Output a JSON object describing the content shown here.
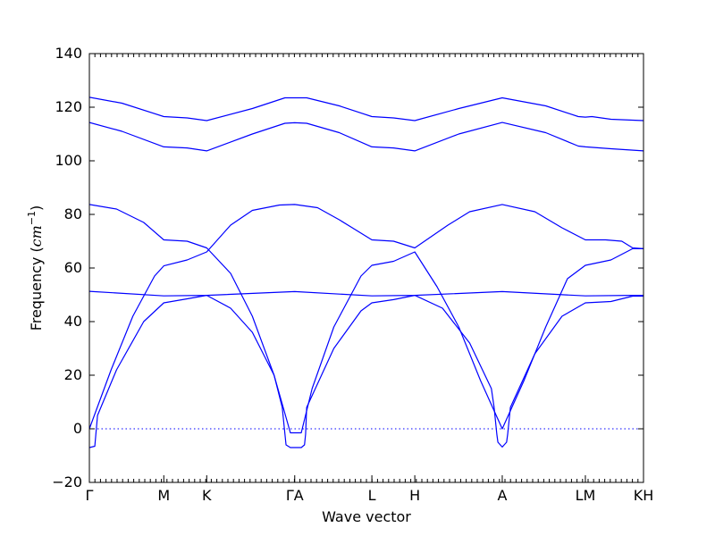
{
  "chart_data": {
    "type": "line",
    "title": "",
    "xlabel": "Wave vector",
    "ylabel_prefix": "Frequency (",
    "ylabel_unit": "cm",
    "ylabel_exp": "−1",
    "ylabel_suffix": ")",
    "ylim": [
      -20,
      140
    ],
    "yticks": [
      -20,
      0,
      20,
      40,
      60,
      80,
      100,
      120,
      140
    ],
    "xlim": [
      0,
      10.2
    ],
    "high_symmetry_points": [
      {
        "label": "Γ",
        "x": 0.0
      },
      {
        "label": "M",
        "x": 1.37
      },
      {
        "label": "K",
        "x": 2.16
      },
      {
        "label": "ΓA",
        "x": 3.78
      },
      {
        "label": "L",
        "x": 5.2
      },
      {
        "label": "H",
        "x": 5.99
      },
      {
        "label": "A",
        "x": 7.6
      },
      {
        "label": "LM",
        "x": 9.13
      },
      {
        "label": "KH",
        "x": 10.2
      }
    ],
    "reference_line_y": 0,
    "grid": false,
    "series": [
      {
        "values": [
          [
            0,
            123.7
          ],
          [
            0.6,
            121.5
          ],
          [
            1.37,
            116.5
          ],
          [
            1.8,
            116
          ],
          [
            2.16,
            115
          ],
          [
            3.0,
            119.5
          ],
          [
            3.6,
            123.5
          ],
          [
            3.78,
            123.5
          ],
          [
            4.0,
            123.5
          ],
          [
            4.6,
            120.5
          ],
          [
            5.2,
            116.5
          ],
          [
            5.6,
            116
          ],
          [
            5.99,
            115
          ],
          [
            6.8,
            119.5
          ],
          [
            7.6,
            123.5
          ],
          [
            8.4,
            120.5
          ],
          [
            9.0,
            116.5
          ],
          [
            9.13,
            116.3
          ],
          [
            9.25,
            116.5
          ],
          [
            9.6,
            115.5
          ],
          [
            10.2,
            115
          ]
        ]
      },
      {
        "values": [
          [
            0,
            114.3
          ],
          [
            0.6,
            111
          ],
          [
            1.37,
            105.2
          ],
          [
            1.8,
            104.8
          ],
          [
            2.16,
            103.7
          ],
          [
            3.0,
            110
          ],
          [
            3.6,
            114
          ],
          [
            3.78,
            114.2
          ],
          [
            4.0,
            114
          ],
          [
            4.6,
            110.5
          ],
          [
            5.2,
            105.2
          ],
          [
            5.6,
            104.8
          ],
          [
            5.99,
            103.7
          ],
          [
            6.8,
            110
          ],
          [
            7.6,
            114.3
          ],
          [
            8.4,
            110.5
          ],
          [
            9.0,
            105.5
          ],
          [
            9.13,
            105.2
          ],
          [
            9.6,
            104.5
          ],
          [
            10.2,
            103.7
          ]
        ]
      },
      {
        "values": [
          [
            0,
            83.7
          ],
          [
            0.5,
            82
          ],
          [
            1.0,
            77
          ],
          [
            1.37,
            70.5
          ],
          [
            1.8,
            70
          ],
          [
            2.16,
            67.5
          ],
          [
            2.6,
            58
          ],
          [
            3.0,
            42
          ],
          [
            3.4,
            20
          ],
          [
            3.7,
            -1.5
          ],
          [
            3.78,
            -1.5
          ],
          [
            3.9,
            -1.5
          ],
          [
            4.1,
            15
          ],
          [
            4.5,
            38
          ],
          [
            5.0,
            57
          ],
          [
            5.2,
            61
          ],
          [
            5.6,
            62.5
          ],
          [
            5.99,
            66
          ],
          [
            6.4,
            53
          ],
          [
            6.8,
            38
          ],
          [
            7.2,
            18
          ],
          [
            7.6,
            0
          ],
          [
            8.0,
            18
          ],
          [
            8.4,
            38
          ],
          [
            8.8,
            56
          ],
          [
            9.13,
            61
          ],
          [
            9.6,
            63
          ],
          [
            10.0,
            67.2
          ],
          [
            10.2,
            67.2
          ]
        ]
      },
      {
        "values": [
          [
            0,
            0
          ],
          [
            0.4,
            22
          ],
          [
            0.8,
            42
          ],
          [
            1.2,
            57
          ],
          [
            1.37,
            60.8
          ],
          [
            1.8,
            63
          ],
          [
            2.16,
            66
          ],
          [
            2.6,
            76
          ],
          [
            3.0,
            81.5
          ],
          [
            3.5,
            83.5
          ],
          [
            3.78,
            83.7
          ],
          [
            4.2,
            82.5
          ],
          [
            4.6,
            78
          ],
          [
            5.2,
            70.5
          ],
          [
            5.6,
            70
          ],
          [
            5.99,
            67.5
          ],
          [
            6.6,
            76
          ],
          [
            7.0,
            81
          ],
          [
            7.6,
            83.7
          ],
          [
            8.2,
            81
          ],
          [
            8.7,
            75
          ],
          [
            9.13,
            70.5
          ],
          [
            9.5,
            70.5
          ],
          [
            9.8,
            70
          ],
          [
            10.0,
            67.5
          ],
          [
            10.2,
            67.2
          ]
        ]
      },
      {
        "values": [
          [
            0,
            51.3
          ],
          [
            1.37,
            49.6
          ],
          [
            2.16,
            49.8
          ],
          [
            3.78,
            51.2
          ],
          [
            5.2,
            49.6
          ],
          [
            5.99,
            49.8
          ],
          [
            7.6,
            51.2
          ],
          [
            9.13,
            49.6
          ],
          [
            10.0,
            49.8
          ],
          [
            10.2,
            49.8
          ]
        ]
      },
      {
        "values": [
          [
            0,
            -7
          ],
          [
            0.1,
            -6.5
          ],
          [
            0.15,
            5
          ],
          [
            0.5,
            22
          ],
          [
            1.0,
            40
          ],
          [
            1.37,
            47
          ],
          [
            1.8,
            48.5
          ],
          [
            2.16,
            49.8
          ],
          [
            2.6,
            45
          ],
          [
            3.0,
            36
          ],
          [
            3.4,
            20
          ],
          [
            3.55,
            8
          ],
          [
            3.6,
            -2
          ],
          [
            3.62,
            -6
          ],
          [
            3.7,
            -7
          ],
          [
            3.9,
            -7
          ],
          [
            3.96,
            -6
          ],
          [
            3.98,
            -2
          ],
          [
            4.0,
            8
          ],
          [
            4.5,
            30
          ],
          [
            5.0,
            44
          ],
          [
            5.2,
            47
          ],
          [
            5.6,
            48.2
          ],
          [
            5.99,
            49.8
          ],
          [
            6.5,
            45
          ],
          [
            7.0,
            32
          ],
          [
            7.4,
            15
          ],
          [
            7.45,
            8
          ],
          [
            7.5,
            -2
          ],
          [
            7.52,
            -5
          ],
          [
            7.6,
            -6.8
          ],
          [
            7.68,
            -5
          ],
          [
            7.7,
            -2
          ],
          [
            7.75,
            8
          ],
          [
            8.2,
            28
          ],
          [
            8.7,
            42
          ],
          [
            9.13,
            47
          ],
          [
            9.6,
            47.5
          ],
          [
            10.0,
            49.5
          ],
          [
            10.2,
            49.5
          ]
        ]
      }
    ]
  }
}
